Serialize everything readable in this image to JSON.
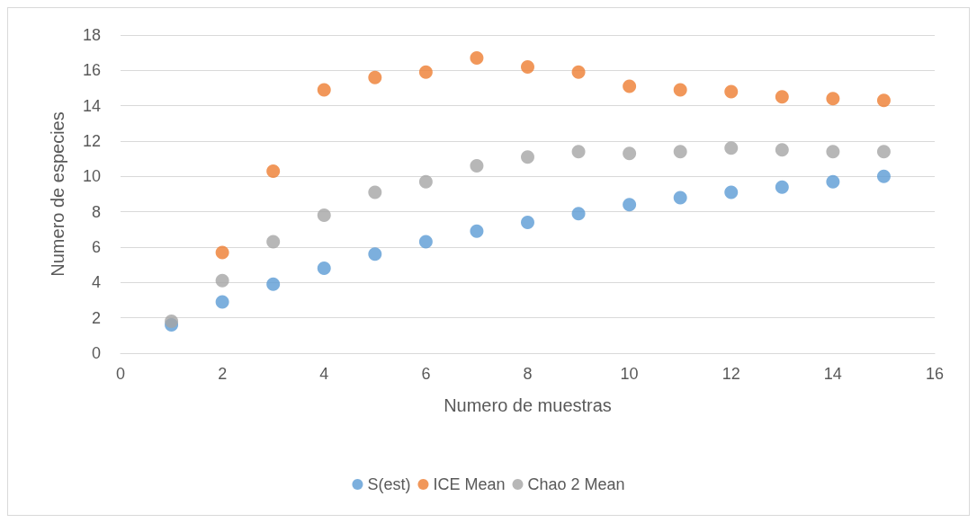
{
  "chart_data": {
    "type": "scatter",
    "xlabel": "Numero de muestras",
    "ylabel": "Numero de especies",
    "x": [
      1,
      2,
      3,
      4,
      5,
      6,
      7,
      8,
      9,
      10,
      11,
      12,
      13,
      14,
      15
    ],
    "xlim": [
      0,
      16
    ],
    "xticks": [
      0,
      2,
      4,
      6,
      8,
      10,
      12,
      14,
      16
    ],
    "ylim": [
      0,
      18
    ],
    "yticks": [
      0,
      2,
      4,
      6,
      8,
      10,
      12,
      14,
      16,
      18
    ],
    "grid": "y",
    "legend": "bottom",
    "marker": "circle",
    "series": [
      {
        "name": "S(est)",
        "color": "#5b9bd5",
        "values": [
          1.6,
          2.9,
          3.9,
          4.8,
          5.6,
          6.3,
          6.9,
          7.4,
          7.9,
          8.4,
          8.8,
          9.1,
          9.4,
          9.7,
          10
        ]
      },
      {
        "name": "ICE Mean",
        "color": "#ed7d31",
        "values": [
          null,
          5.7,
          10.3,
          14.9,
          15.6,
          15.9,
          16.7,
          16.2,
          15.9,
          15.1,
          14.9,
          14.8,
          14.5,
          14.4,
          14.3
        ]
      },
      {
        "name": "Chao 2 Mean",
        "color": "#a5a5a5",
        "values": [
          1.8,
          4.1,
          6.3,
          7.8,
          9.1,
          9.7,
          10.6,
          11.1,
          11.4,
          11.3,
          11.4,
          11.6,
          11.5,
          11.4,
          11.4
        ]
      }
    ]
  }
}
